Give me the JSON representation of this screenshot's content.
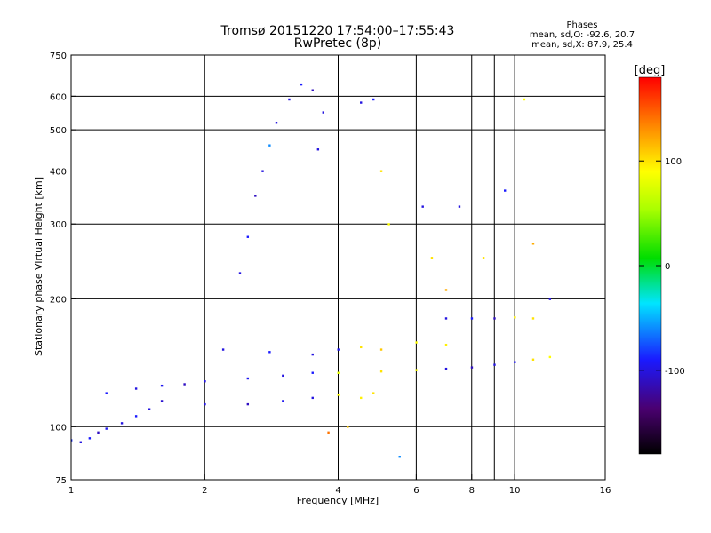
{
  "title": {
    "line1": "Tromsø 20151220 17:54:00–17:55:43",
    "line2": "RwPretec (8p)"
  },
  "phases_box": {
    "header": "Phases",
    "o_line": "mean, sd,O: -92.6, 20.7",
    "x_line": "mean, sd,X: 87.9, 25.4"
  },
  "colorbar": {
    "label": "[deg]",
    "ticks": [
      "100",
      "0",
      "-100"
    ],
    "tick_values": [
      100,
      0,
      -100
    ],
    "range": [
      -180,
      180
    ]
  },
  "colors": {
    "grid": "#000000",
    "background": "#ffffff"
  },
  "chart_data": {
    "type": "scatter",
    "title": "Tromsø 20151220 17:54:00–17:55:43",
    "subtitle": "RwPretec (8p)",
    "xlabel": "Frequency [MHz]",
    "ylabel": "Stationary phase Virtual Height [km]",
    "x_scale": "log",
    "y_scale": "log",
    "xlim": [
      1,
      16
    ],
    "ylim": [
      75,
      750
    ],
    "xticks": [
      1,
      2,
      4,
      6,
      8,
      10,
      16
    ],
    "xtick_labels": [
      "1",
      "2",
      "4",
      "6",
      "8",
      "10",
      "16"
    ],
    "yticks": [
      75,
      100,
      200,
      300,
      400,
      500,
      600,
      750
    ],
    "ytick_labels": [
      "75",
      "100",
      "200",
      "300",
      "400",
      "500",
      "600",
      "750"
    ],
    "x_gridlines": [
      2,
      4,
      6,
      8,
      9,
      10
    ],
    "y_gridlines": [
      100,
      200,
      300,
      400,
      500,
      600
    ],
    "grid": true,
    "color_scale": "phase [deg], -180 to 180 (black-purple-blue-cyan-green-yellow-orange-red)",
    "series": [
      {
        "points": [
          [
            1.0,
            93,
            -85
          ],
          [
            1.05,
            92,
            -100
          ],
          [
            1.1,
            94,
            -90
          ],
          [
            1.15,
            97,
            -110
          ],
          [
            1.2,
            99,
            -95
          ],
          [
            1.3,
            102,
            -100
          ],
          [
            1.4,
            106,
            -90
          ],
          [
            1.5,
            110,
            -100
          ],
          [
            1.6,
            115,
            -105
          ]
        ]
      },
      {
        "points": [
          [
            1.2,
            120,
            -90
          ],
          [
            1.4,
            123,
            -100
          ],
          [
            1.6,
            125,
            -95
          ],
          [
            1.8,
            126,
            -110
          ],
          [
            2.0,
            128,
            -100
          ],
          [
            2.5,
            130,
            -95
          ],
          [
            3.0,
            132,
            -100
          ],
          [
            3.5,
            134,
            -90
          ],
          [
            4.0,
            134,
            80
          ],
          [
            5.0,
            135,
            100
          ],
          [
            6.0,
            136,
            90
          ],
          [
            7.0,
            137,
            -100
          ],
          [
            8.0,
            138,
            -110
          ],
          [
            9.0,
            140,
            -100
          ],
          [
            10.0,
            142,
            -95
          ],
          [
            11.0,
            144,
            100
          ],
          [
            12.0,
            146,
            90
          ]
        ]
      },
      {
        "points": [
          [
            2.0,
            113,
            -100
          ],
          [
            2.5,
            113,
            -110
          ],
          [
            3.0,
            115,
            -95
          ],
          [
            3.5,
            117,
            -100
          ],
          [
            4.0,
            119,
            90
          ],
          [
            4.5,
            117,
            95
          ]
        ]
      },
      {
        "points": [
          [
            2.2,
            152,
            -100
          ],
          [
            2.8,
            150,
            -90
          ],
          [
            3.5,
            148,
            -100
          ],
          [
            4.0,
            152,
            -95
          ],
          [
            4.5,
            154,
            100
          ],
          [
            5.0,
            152,
            110
          ],
          [
            6.0,
            158,
            90
          ],
          [
            7.0,
            156,
            95
          ]
        ]
      },
      {
        "points": [
          [
            7.0,
            180,
            -100
          ],
          [
            8.0,
            180,
            -90
          ],
          [
            9.0,
            180,
            -110
          ],
          [
            10.0,
            181,
            95
          ],
          [
            11.0,
            180,
            100
          ]
        ]
      },
      {
        "points": [
          [
            2.4,
            230,
            -100
          ],
          [
            2.5,
            280,
            -90
          ],
          [
            2.6,
            350,
            -110
          ],
          [
            2.7,
            400,
            -100
          ],
          [
            2.8,
            460,
            -60
          ],
          [
            2.9,
            520,
            -100
          ],
          [
            3.1,
            590,
            -100
          ],
          [
            3.3,
            640,
            -90
          ],
          [
            3.5,
            620,
            -110
          ],
          [
            3.6,
            450,
            -100
          ],
          [
            3.7,
            550,
            -100
          ]
        ]
      },
      {
        "points": [
          [
            4.5,
            580,
            -100
          ],
          [
            4.8,
            590,
            -90
          ],
          [
            5.0,
            400,
            100
          ],
          [
            5.2,
            300,
            90
          ],
          [
            6.2,
            330,
            -100
          ],
          [
            6.5,
            250,
            100
          ],
          [
            7.0,
            210,
            120
          ],
          [
            7.5,
            330,
            -100
          ],
          [
            8.5,
            250,
            100
          ],
          [
            9.5,
            360,
            -90
          ],
          [
            10.5,
            590,
            90
          ],
          [
            11.0,
            270,
            120
          ],
          [
            12.0,
            200,
            -100
          ]
        ]
      },
      {
        "points": [
          [
            4.2,
            100,
            110
          ],
          [
            3.8,
            97,
            140
          ],
          [
            4.8,
            120,
            100
          ],
          [
            5.5,
            85,
            -60
          ]
        ]
      }
    ]
  }
}
